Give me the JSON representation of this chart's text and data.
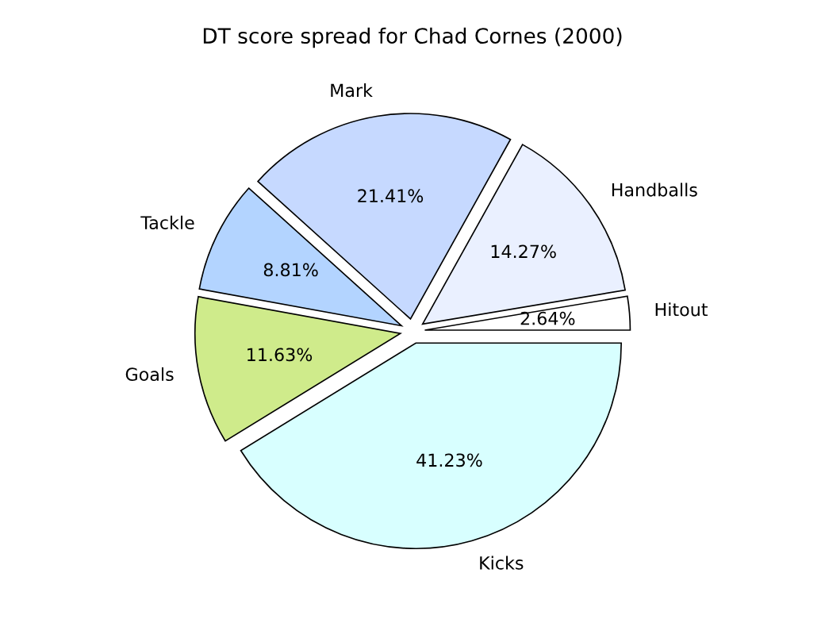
{
  "chart_data": {
    "type": "pie",
    "title": "DT score spread for Chad Cornes (2000)",
    "categories": [
      "Hitout",
      "Handballs",
      "Mark",
      "Tackle",
      "Goals",
      "Kicks"
    ],
    "values": [
      2.64,
      14.27,
      21.41,
      8.81,
      11.63,
      41.23
    ],
    "value_labels": [
      "2.64%",
      "14.27%",
      "21.41%",
      "8.81%",
      "11.63%",
      "41.23%"
    ],
    "colors": [
      "#ffffff",
      "#eaf0ff",
      "#c6d9ff",
      "#b3d4ff",
      "#cfeb8b",
      "#d8ffff"
    ],
    "legend": false
  }
}
